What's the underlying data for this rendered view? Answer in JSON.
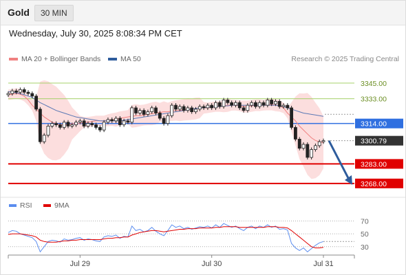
{
  "header": {
    "symbol": "Gold",
    "timeframe": "30 MIN"
  },
  "datetime": "Wednesday, July 30, 2025 8:08:34 PM CET",
  "credit": "Research © 2025 Trading Central",
  "legend": [
    {
      "label": "MA 20 + Bollinger Bands",
      "color": "#f08080"
    },
    {
      "label": "MA 50",
      "color": "#2e5c9c"
    }
  ],
  "rsi_legend": [
    {
      "label": "RSI",
      "color": "#5b8def"
    },
    {
      "label": "9MA",
      "color": "#e00000"
    }
  ],
  "chart_data": [
    {
      "type": "candlestick",
      "ylim": [
        3260,
        3356
      ],
      "x_ticks": [
        {
          "label": "Jul 29",
          "index": 18
        },
        {
          "label": "Jul 30",
          "index": 51
        },
        {
          "label": "Jul 31",
          "index": 79
        }
      ],
      "levels": [
        {
          "value": 3345.0,
          "label": "3345.00",
          "color": "#a6d06a",
          "style": "target"
        },
        {
          "value": 3333.0,
          "label": "3333.00",
          "color": "#a6d06a",
          "style": "target"
        },
        {
          "value": 3314.0,
          "label": "3314.00",
          "color": "#2f6fe0",
          "style": "resistance"
        },
        {
          "value": 3300.79,
          "label": "3300.79",
          "color": "#333333",
          "style": "last"
        },
        {
          "value": 3283.0,
          "label": "3283.00",
          "color": "#e00000",
          "style": "support"
        },
        {
          "value": 3268.0,
          "label": "3268.00",
          "color": "#e00000",
          "style": "support"
        }
      ],
      "forecast_arrow": {
        "from": 3300.79,
        "to": 3268.0
      },
      "closes": [
        3337,
        3339,
        3338,
        3340,
        3338,
        3337,
        3335,
        3325,
        3300,
        3305,
        3312,
        3314,
        3313,
        3311,
        3315,
        3312,
        3313,
        3315,
        3316,
        3312,
        3314,
        3313,
        3311,
        3309,
        3315,
        3317,
        3316,
        3318,
        3313,
        3316,
        3315,
        3326,
        3322,
        3324,
        3321,
        3323,
        3326,
        3322,
        3318,
        3314,
        3320,
        3328,
        3325,
        3327,
        3324,
        3326,
        3323,
        3325,
        3327,
        3326,
        3328,
        3326,
        3330,
        3327,
        3332,
        3330,
        3328,
        3330,
        3326,
        3324,
        3328,
        3330,
        3327,
        3330,
        3328,
        3332,
        3329,
        3331,
        3327,
        3328,
        3326,
        3311,
        3302,
        3295,
        3298,
        3288,
        3294,
        3297,
        3300,
        3300.79
      ],
      "ma20": [
        3336,
        3336.5,
        3337,
        3336.5,
        3335,
        3332,
        3328,
        3325,
        3322,
        3319,
        3317,
        3315,
        3314,
        3313,
        3313,
        3313,
        3314,
        3314,
        3314,
        3315,
        3315,
        3315.5,
        3316,
        3316,
        3316,
        3316.5,
        3317,
        3317,
        3318,
        3318.5,
        3319,
        3319.5,
        3320,
        3320,
        3320.5,
        3321,
        3321.5,
        3322,
        3322.5,
        3323,
        3323,
        3323.5,
        3324,
        3324,
        3324.5,
        3325,
        3325,
        3325.5,
        3326,
        3326,
        3326,
        3326.5,
        3327,
        3327,
        3327.5,
        3328,
        3328,
        3328,
        3327.5,
        3327,
        3327,
        3327.5,
        3328,
        3328,
        3328,
        3328.5,
        3328.5,
        3328,
        3327.5,
        3326,
        3322,
        3319,
        3316,
        3312,
        3309,
        3306,
        3303,
        3301,
        3300,
        3299.5
      ],
      "ma50": [
        3338.5,
        3338,
        3337.5,
        3337,
        3336,
        3335,
        3334,
        3332,
        3330,
        3328.5,
        3327,
        3325.5,
        3324,
        3323,
        3322,
        3321,
        3320,
        3319,
        3318.5,
        3318,
        3317.5,
        3317,
        3316.5,
        3316,
        3316,
        3316,
        3316,
        3316,
        3316,
        3316.5,
        3317,
        3317.5,
        3318,
        3318.5,
        3319,
        3319.5,
        3320,
        3320.5,
        3321,
        3321.5,
        3322,
        3322.5,
        3323,
        3323.5,
        3324,
        3324.5,
        3325,
        3325.5,
        3326,
        3326,
        3326.5,
        3326.5,
        3327,
        3327,
        3327.5,
        3327.5,
        3328,
        3328,
        3328,
        3328,
        3328,
        3328,
        3328,
        3328,
        3328,
        3328,
        3328,
        3328,
        3327.5,
        3327,
        3326,
        3325,
        3324,
        3323,
        3322,
        3321.5,
        3321,
        3320.5,
        3320,
        3319.5
      ]
    },
    {
      "type": "line",
      "name": "RSI",
      "yticks": [
        70,
        50,
        30
      ],
      "ylim": [
        18,
        80
      ],
      "rsi": [
        52,
        55,
        54,
        50,
        48,
        46,
        44,
        38,
        22,
        30,
        38,
        40,
        39,
        37,
        42,
        40,
        41,
        43,
        44,
        40,
        42,
        41,
        39,
        38,
        45,
        47,
        46,
        48,
        43,
        46,
        45,
        62,
        55,
        57,
        53,
        55,
        60,
        54,
        50,
        47,
        55,
        64,
        60,
        62,
        58,
        60,
        57,
        59,
        61,
        60,
        62,
        59,
        64,
        60,
        66,
        63,
        60,
        62,
        58,
        55,
        60,
        62,
        58,
        62,
        60,
        64,
        60,
        62,
        57,
        58,
        56,
        35,
        28,
        24,
        28,
        22,
        27,
        32,
        36,
        38
      ],
      "rsi_ma": [
        49,
        50,
        50,
        50,
        49,
        48,
        47,
        45,
        40,
        38,
        37,
        37,
        37,
        38,
        39,
        39,
        40,
        40,
        41,
        41,
        41,
        41,
        41,
        41,
        42,
        43,
        43,
        44,
        44,
        45,
        45,
        48,
        50,
        52,
        53,
        54,
        55,
        55,
        54,
        53,
        54,
        55,
        56,
        57,
        57,
        58,
        58,
        58,
        59,
        59,
        59,
        59,
        60,
        60,
        61,
        61,
        61,
        61,
        60,
        60,
        60,
        60,
        60,
        60,
        60,
        61,
        61,
        61,
        60,
        60,
        59,
        55,
        50,
        45,
        40,
        35,
        30,
        28,
        28,
        29
      ]
    }
  ]
}
